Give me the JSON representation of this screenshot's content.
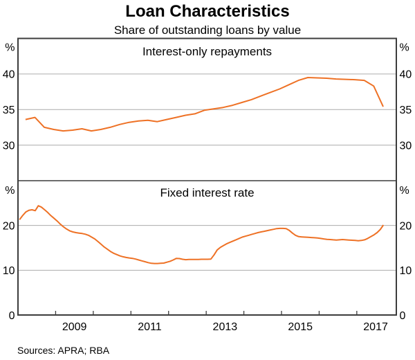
{
  "chart": {
    "title": "Loan Characteristics",
    "subtitle": "Share of outstanding loans by value",
    "sources": "Sources: APRA; RBA",
    "unit_label": "%",
    "colors": {
      "line": "#EE7125",
      "frame": "#3C3C3C",
      "grid": "#ACACAC",
      "text": "#000000"
    },
    "x_axis": {
      "min": 2008.0,
      "max": 2018.05,
      "year_ticks": [
        2009,
        2010,
        2011,
        2012,
        2013,
        2014,
        2015,
        2016,
        2017
      ],
      "labels": [
        {
          "text": "2009",
          "x": 2009.5
        },
        {
          "text": "2011",
          "x": 2011.5
        },
        {
          "text": "2013",
          "x": 2013.5
        },
        {
          "text": "2015",
          "x": 2015.5
        },
        {
          "text": "2017",
          "x": 2017.5
        }
      ]
    }
  },
  "chart_data": [
    {
      "type": "line",
      "panel": "top",
      "title": "Interest-only repayments",
      "ylabel_left": "%",
      "ylabel_right": "%",
      "ylim": [
        25,
        45
      ],
      "yticks": [
        30,
        35,
        40
      ],
      "grid": true,
      "legend": "none",
      "frequency": "quarterly",
      "x_start": 2008.2,
      "x_step": 0.25,
      "values": [
        33.6,
        33.9,
        32.5,
        32.2,
        32.0,
        32.1,
        32.3,
        32.0,
        32.2,
        32.5,
        32.9,
        33.2,
        33.4,
        33.5,
        33.3,
        33.6,
        33.9,
        34.2,
        34.4,
        34.9,
        35.1,
        35.3,
        35.6,
        36.0,
        36.4,
        36.9,
        37.4,
        37.9,
        38.5,
        39.1,
        39.5,
        39.45,
        39.4,
        39.3,
        39.25,
        39.2,
        39.1,
        38.3,
        35.4
      ]
    },
    {
      "type": "line",
      "panel": "bottom",
      "title": "Fixed interest rate",
      "ylabel_left": "%",
      "ylabel_right": "%",
      "ylim": [
        0,
        30
      ],
      "yticks": [
        0,
        10,
        20
      ],
      "grid": true,
      "legend": "none",
      "frequency": "monthly",
      "x_start": 2008.04,
      "x_step": 0.0833333,
      "values": [
        21.3,
        22.2,
        23.0,
        23.4,
        23.5,
        23.3,
        24.4,
        24.1,
        23.5,
        22.9,
        22.2,
        21.6,
        21.0,
        20.3,
        19.7,
        19.2,
        18.8,
        18.55,
        18.4,
        18.3,
        18.2,
        18.05,
        17.8,
        17.4,
        17.0,
        16.4,
        15.8,
        15.2,
        14.7,
        14.2,
        13.8,
        13.5,
        13.2,
        13.0,
        12.85,
        12.75,
        12.65,
        12.5,
        12.3,
        12.1,
        11.9,
        11.7,
        11.55,
        11.5,
        11.5,
        11.55,
        11.6,
        11.8,
        12.0,
        12.3,
        12.65,
        12.6,
        12.45,
        12.35,
        12.4,
        12.4,
        12.4,
        12.4,
        12.45,
        12.45,
        12.45,
        12.5,
        13.4,
        14.5,
        15.1,
        15.5,
        15.9,
        16.2,
        16.5,
        16.8,
        17.1,
        17.4,
        17.6,
        17.8,
        18.0,
        18.2,
        18.4,
        18.55,
        18.7,
        18.85,
        19.0,
        19.15,
        19.3,
        19.35,
        19.35,
        19.3,
        18.9,
        18.3,
        17.8,
        17.5,
        17.45,
        17.4,
        17.35,
        17.3,
        17.25,
        17.2,
        17.1,
        17.0,
        16.9,
        16.85,
        16.8,
        16.75,
        16.8,
        16.85,
        16.8,
        16.75,
        16.7,
        16.65,
        16.6,
        16.65,
        16.8,
        17.1,
        17.5,
        17.9,
        18.4,
        19.1,
        20.1
      ]
    }
  ]
}
